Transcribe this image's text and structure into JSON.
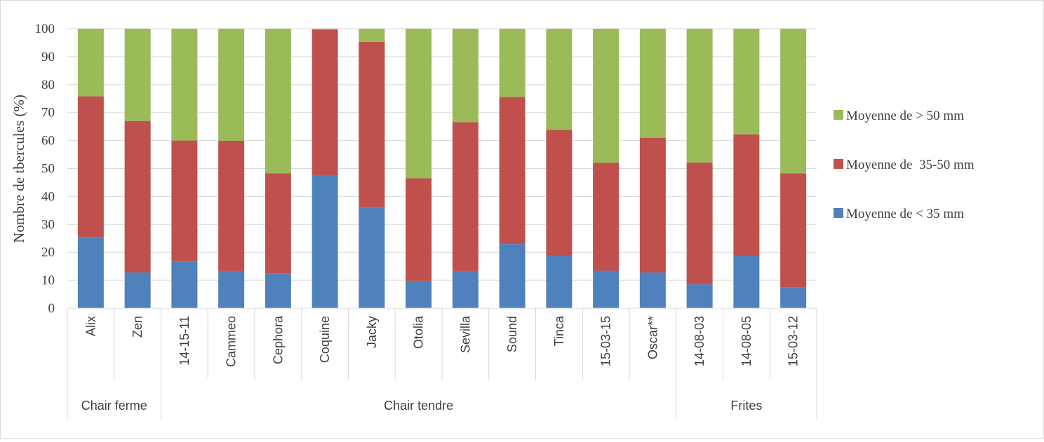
{
  "chart_data": {
    "type": "bar",
    "stacked": true,
    "ylabel": "Nombre de tbercules (%)",
    "xlabel": "",
    "ylim": [
      0,
      100
    ],
    "yticks": [
      0,
      10,
      20,
      30,
      40,
      50,
      60,
      70,
      80,
      90,
      100
    ],
    "grid": true,
    "legend_position": "right",
    "categories": [
      "Alix",
      "Zen",
      "14-15-11",
      "Cammeo",
      "Cephora",
      "Coquine",
      "Jacky",
      "Otolia",
      "Sevilla",
      "Sound",
      "Tinca",
      "15-03-15",
      "Oscar**",
      "14-08-03",
      "14-08-05",
      "15-03-12"
    ],
    "groups": [
      {
        "label": "Chair ferme",
        "count": 2
      },
      {
        "label": "Chair tendre",
        "count": 11
      },
      {
        "label": "Frites",
        "count": 3
      }
    ],
    "series": [
      {
        "name": "Moyenne de < 35 mm",
        "color": "#4f81bd",
        "values": [
          25.5,
          12.8,
          16.7,
          13.3,
          12.5,
          47.5,
          36.0,
          9.8,
          13.3,
          23.0,
          18.8,
          13.4,
          12.8,
          8.6,
          18.8,
          7.5
        ]
      },
      {
        "name": "Moyenne de  35-50 mm",
        "color": "#c0504d",
        "values": [
          50.3,
          54.2,
          43.3,
          46.6,
          35.8,
          52.2,
          59.3,
          36.7,
          53.3,
          52.6,
          45.0,
          38.6,
          48.2,
          43.5,
          43.4,
          40.8
        ]
      },
      {
        "name": "Moyenne de > 50 mm",
        "color": "#9bbb59",
        "values": [
          24.2,
          33.0,
          40.0,
          40.1,
          51.7,
          0.3,
          4.7,
          53.5,
          33.4,
          24.4,
          36.2,
          48.0,
          39.0,
          47.9,
          37.8,
          51.7
        ]
      }
    ],
    "legend_order": [
      2,
      1,
      0
    ]
  }
}
